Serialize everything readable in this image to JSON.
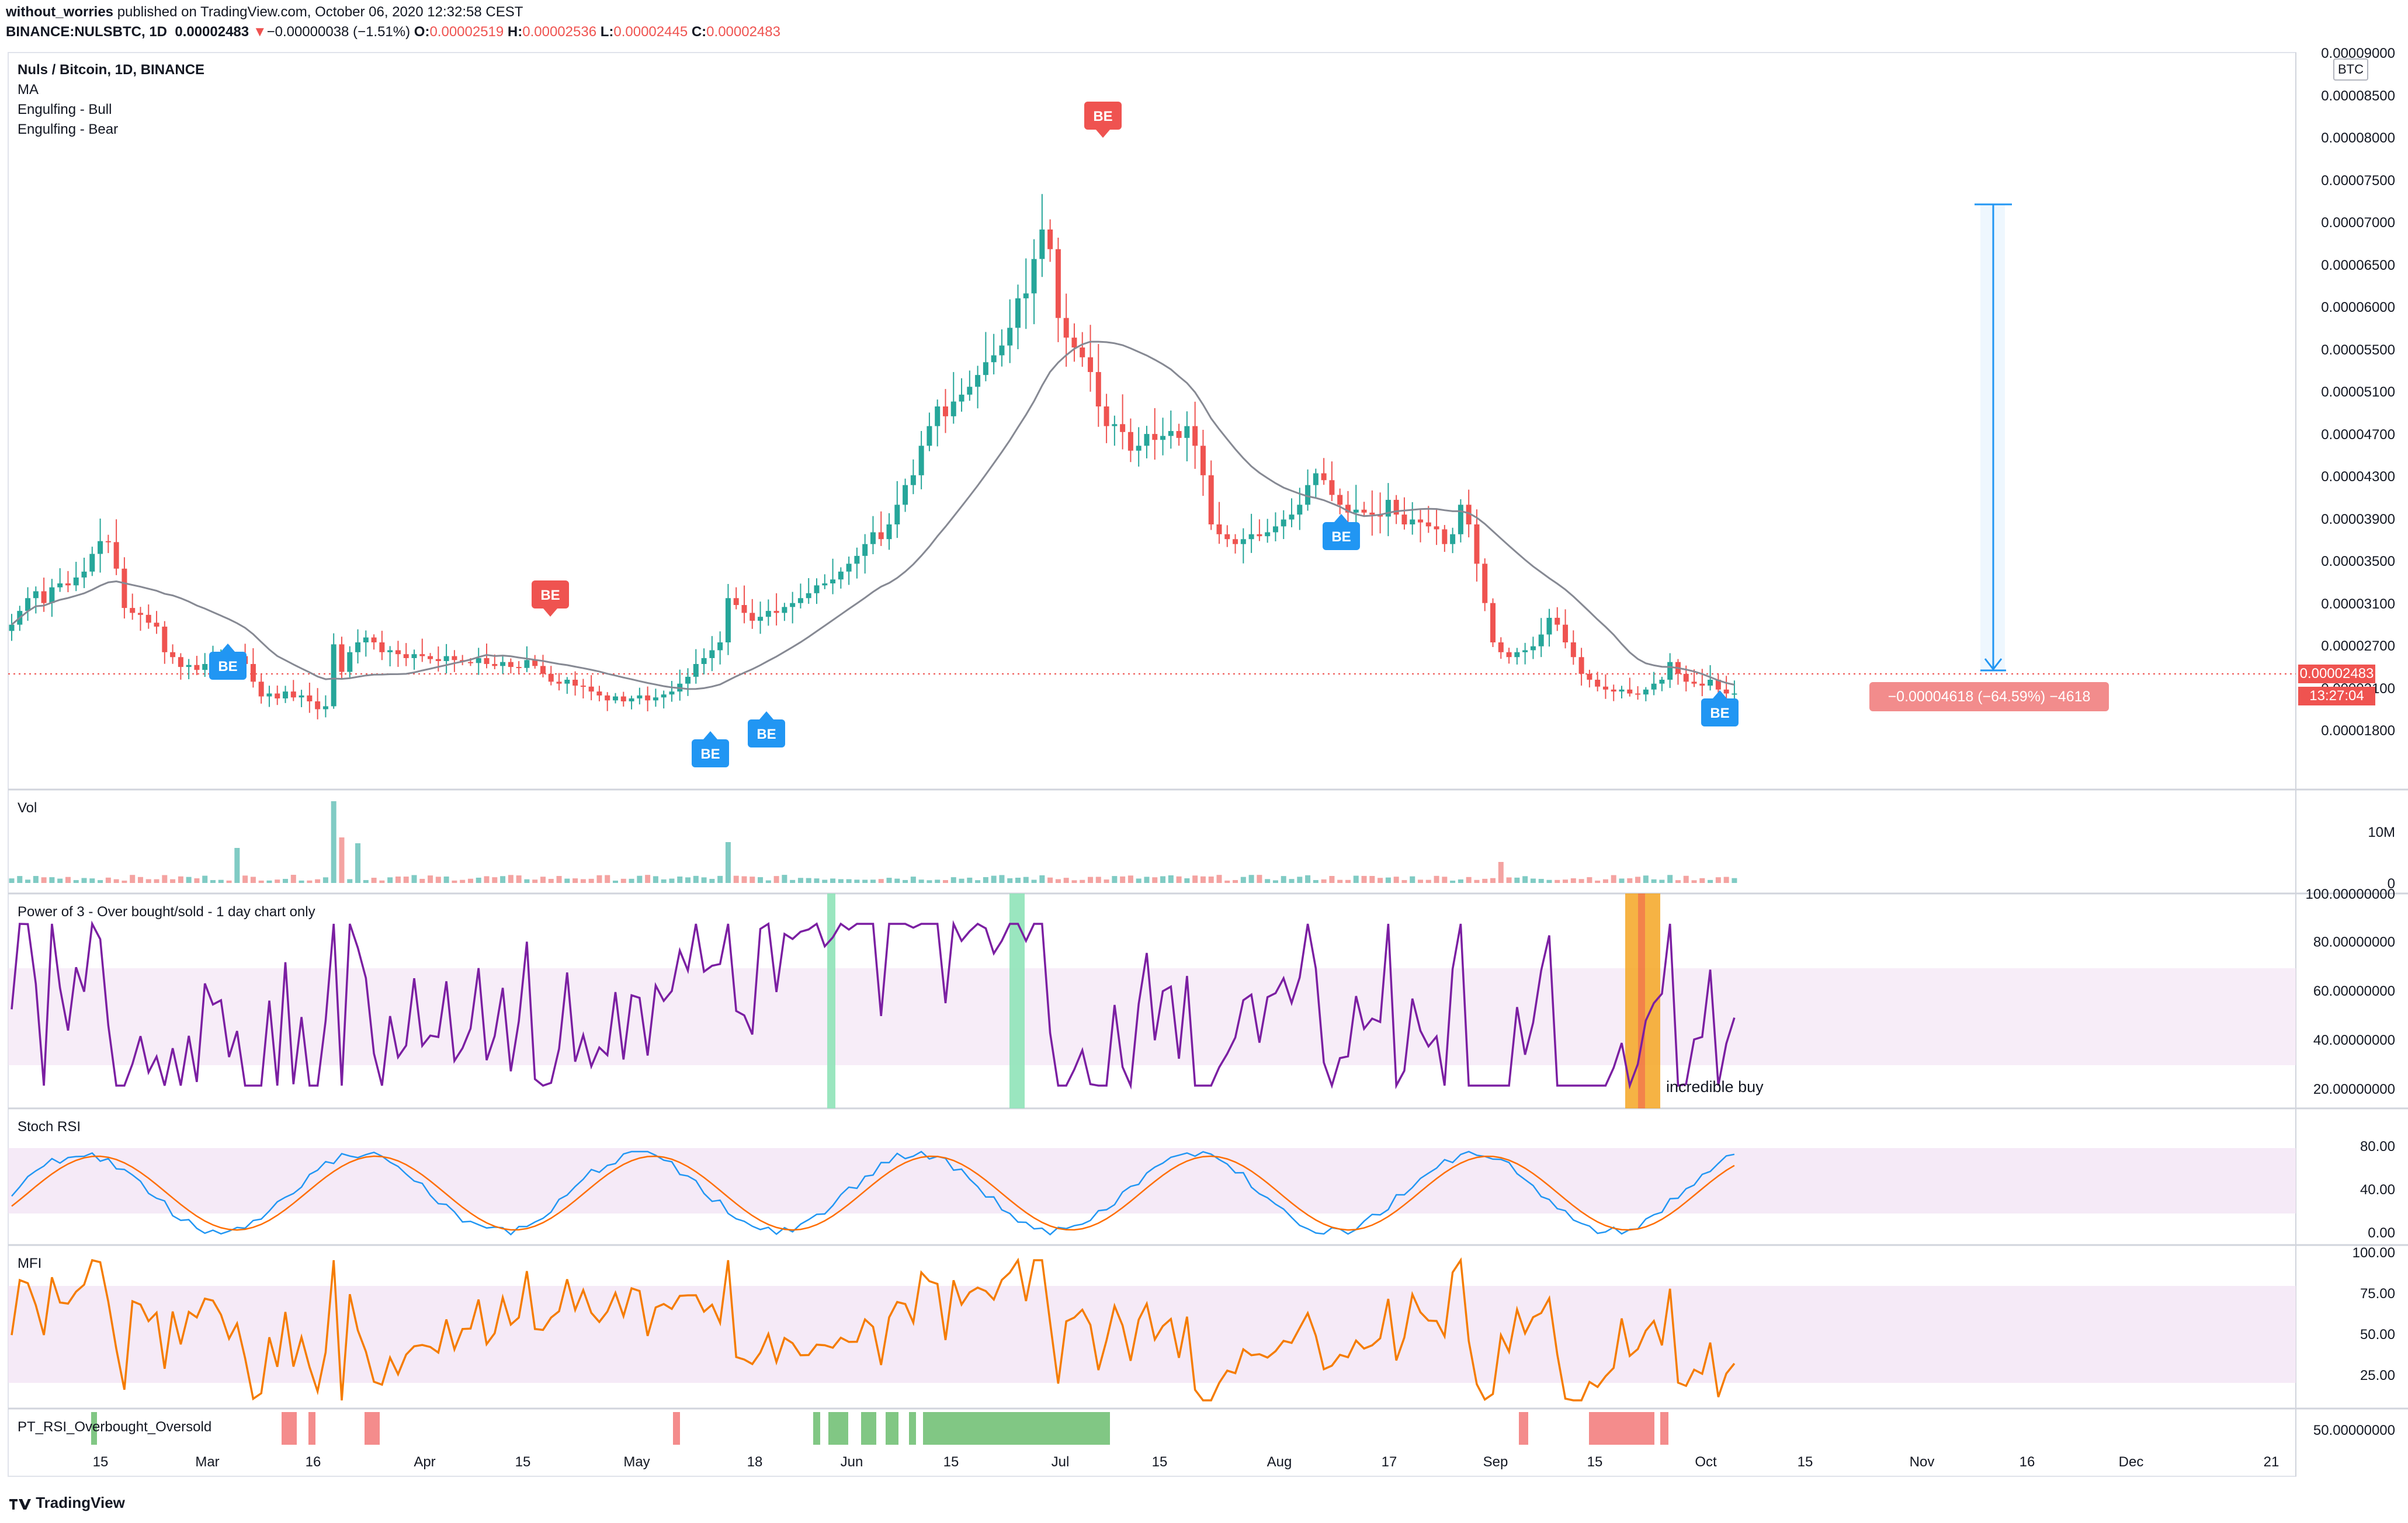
{
  "header": {
    "publisher": "without_worries",
    "published_text": " published on TradingView.com, October 06, 2020 12:32:58 CEST",
    "symbol": "BINANCE:NULSBTC, 1D",
    "last": "0.00002483",
    "change": "−0.00000038 (−1.51%)",
    "o_label": "O:",
    "o": "0.00002519",
    "h_label": "H:",
    "h": "0.00002536",
    "l_label": "L:",
    "l": "0.00002445",
    "c_label": "C:",
    "c": "0.00002483"
  },
  "legend": {
    "title": "Nuls / Bitcoin, 1D, BINANCE",
    "items": [
      "MA",
      "Engulfing - Bull",
      "Engulfing - Bear"
    ]
  },
  "price_axis": {
    "currency": "BTC",
    "ticks": [
      "0.00009000",
      "0.00008500",
      "0.00008000",
      "0.00007500",
      "0.00007000",
      "0.00006500",
      "0.00006000",
      "0.00005500",
      "0.00005100",
      "0.00004700",
      "0.00004300",
      "0.00003900",
      "0.00003500",
      "0.00003100",
      "0.00002700",
      "0.00002100",
      "0.00001800"
    ],
    "current_price": "0.00002483",
    "countdown": "13:27:04"
  },
  "measure_label": "−0.00004618 (−64.59%) −4618",
  "markers": {
    "label": "BE"
  },
  "panels": {
    "vol": {
      "title": "Vol",
      "ticks": [
        "10M",
        "0"
      ]
    },
    "power3": {
      "title": "Power of 3 - Over bought/sold - 1 day chart only",
      "ticks": [
        "100.00000000",
        "80.00000000",
        "60.00000000",
        "40.00000000",
        "20.00000000"
      ],
      "annotation": "incredible buy"
    },
    "stochrsi": {
      "title": "Stoch RSI",
      "ticks": [
        "80.00",
        "40.00",
        "0.00"
      ]
    },
    "mfi": {
      "title": "MFI",
      "ticks": [
        "100.00",
        "75.00",
        "50.00",
        "25.00"
      ]
    },
    "pt_rsi": {
      "title": "PT_RSI_Overbought_Oversold",
      "ticks": [
        "50.00000000"
      ]
    }
  },
  "x_axis": {
    "ticks": [
      "15",
      "Mar",
      "16",
      "Apr",
      "15",
      "May",
      "18",
      "Jun",
      "15",
      "Jul",
      "15",
      "Aug",
      "17",
      "Sep",
      "15",
      "Oct",
      "15",
      "Nov",
      "16",
      "Dec",
      "21"
    ]
  },
  "footer": {
    "brand": "TradingView"
  },
  "colors": {
    "up": "#26a69a",
    "down": "#ef5350",
    "ma": "#868993",
    "marker_bull": "#2196f3",
    "marker_bear": "#ef5350",
    "rsi_line": "#7b1fa2",
    "stoch_k": "#2196f3",
    "stoch_d": "#ff6d00",
    "mfi": "#f57c00",
    "band": "#f3e5f5"
  },
  "chart_data": [
    {
      "type": "candlestick",
      "title": "Nuls / Bitcoin, 1D, BINANCE",
      "ylabel": "BTC",
      "x_range": [
        "2020-02-10",
        "2020-12-26"
      ],
      "last_date": "2020-10-06",
      "ylim": [
        1.6e-05,
        9e-05
      ],
      "close": [
        3.18e-05,
        3.32e-05,
        3.45e-05,
        3.52e-05,
        3.4e-05,
        3.56e-05,
        3.6e-05,
        3.58e-05,
        3.66e-05,
        3.72e-05,
        3.9e-05,
        4.03e-05,
        4.02e-05,
        3.75e-05,
        3.35e-05,
        3.3e-05,
        3.28e-05,
        3.2e-05,
        3.16e-05,
        2.9e-05,
        2.85e-05,
        2.75e-05,
        2.77e-05,
        2.72e-05,
        2.78e-05,
        2.83e-05,
        2.88e-05,
        2.85e-05,
        2.86e-05,
        2.78e-05,
        2.6e-05,
        2.45e-05,
        2.48e-05,
        2.43e-05,
        2.5e-05,
        2.44e-05,
        2.46e-05,
        2.4e-05,
        2.32e-05,
        2.35e-05,
        2.98e-05,
        2.7e-05,
        2.9e-05,
        3e-05,
        3.05e-05,
        3e-05,
        2.9e-05,
        2.92e-05,
        2.88e-05,
        2.84e-05,
        2.88e-05,
        2.86e-05,
        2.83e-05,
        2.81e-05,
        2.86e-05,
        2.82e-05,
        2.8e-05,
        2.79e-05,
        2.84e-05,
        2.78e-05,
        2.76e-05,
        2.8e-05,
        2.75e-05,
        2.74e-05,
        2.82e-05,
        2.76e-05,
        2.68e-05,
        2.6e-05,
        2.58e-05,
        2.62e-05,
        2.56e-05,
        2.55e-05,
        2.5e-05,
        2.46e-05,
        2.41e-05,
        2.45e-05,
        2.4e-05,
        2.43e-05,
        2.46e-05,
        2.41e-05,
        2.44e-05,
        2.47e-05,
        2.5e-05,
        2.58e-05,
        2.65e-05,
        2.78e-05,
        2.84e-05,
        2.92e-05,
        3e-05,
        3.45e-05,
        3.38e-05,
        3.3e-05,
        3.22e-05,
        3.26e-05,
        3.32e-05,
        3.3e-05,
        3.36e-05,
        3.4e-05,
        3.45e-05,
        3.5e-05,
        3.58e-05,
        3.6e-05,
        3.64e-05,
        3.72e-05,
        3.8e-05,
        3.88e-05,
        4e-05,
        4.12e-05,
        4.05e-05,
        4.2e-05,
        4.4e-05,
        4.6e-05,
        4.7e-05,
        5e-05,
        5.2e-05,
        5.4e-05,
        5.3e-05,
        5.45e-05,
        5.52e-05,
        5.6e-05,
        5.72e-05,
        5.85e-05,
        5.92e-05,
        6.02e-05,
        6.2e-05,
        6.5e-05,
        6.55e-05,
        6.9e-05,
        7.2e-05,
        7e-05,
        6.3e-05,
        6.1e-05,
        6e-05,
        5.9e-05,
        5.75e-05,
        5.4e-05,
        5.2e-05,
        5.22e-05,
        5.14e-05,
        4.95e-05,
        5e-05,
        5.12e-05,
        5.06e-05,
        5.1e-05,
        5.15e-05,
        5.08e-05,
        5.2e-05,
        5e-05,
        4.7e-05,
        4.2e-05,
        4.1e-05,
        4.05e-05,
        4e-05,
        4.05e-05,
        4.1e-05,
        4.08e-05,
        4.12e-05,
        4.18e-05,
        4.25e-05,
        4.3e-05,
        4.4e-05,
        4.6e-05,
        4.72e-05,
        4.65e-05,
        4.5e-05,
        4.4e-05,
        4.32e-05,
        4.35e-05,
        4.32e-05,
        4.3e-05,
        4.28e-05,
        4.45e-05,
        4.3e-05,
        4.2e-05,
        4.25e-05,
        4.22e-05,
        4.18e-05,
        4.15e-05,
        4e-05,
        4.1e-05,
        4.4e-05,
        4.2e-05,
        3.8e-05,
        3.4e-05,
        3e-05,
        2.9e-05,
        2.85e-05,
        2.9e-05,
        2.92e-05,
        2.96e-05,
        3.08e-05,
        3.25e-05,
        3.18e-05,
        3e-05,
        2.85e-05,
        2.68e-05,
        2.62e-05,
        2.55e-05,
        2.52e-05,
        2.5e-05,
        2.52e-05,
        2.48e-05,
        2.47e-05,
        2.52e-05,
        2.58e-05,
        2.62e-05,
        2.8e-05,
        2.68e-05,
        2.6e-05,
        2.58e-05,
        2.56e-05,
        2.62e-05,
        2.52e-05,
        2.48e-05,
        2.48e-05
      ]
    },
    {
      "type": "bar",
      "title": "Vol",
      "ylim": [
        0,
        12000000
      ]
    },
    {
      "type": "line",
      "title": "Power of 3 - Over bought/sold - 1 day chart only",
      "ylim": [
        15,
        100
      ],
      "band": [
        30,
        70
      ],
      "annotations": [
        "incredible buy"
      ]
    },
    {
      "type": "line",
      "title": "Stoch RSI",
      "ylim": [
        -5,
        95
      ],
      "band": [
        20,
        80
      ]
    },
    {
      "type": "line",
      "title": "MFI",
      "ylim": [
        10,
        100
      ],
      "band": [
        20,
        80
      ]
    },
    {
      "type": "bar",
      "title": "PT_RSI_Overbought_Oversold",
      "ylim": [
        0,
        100
      ]
    }
  ]
}
